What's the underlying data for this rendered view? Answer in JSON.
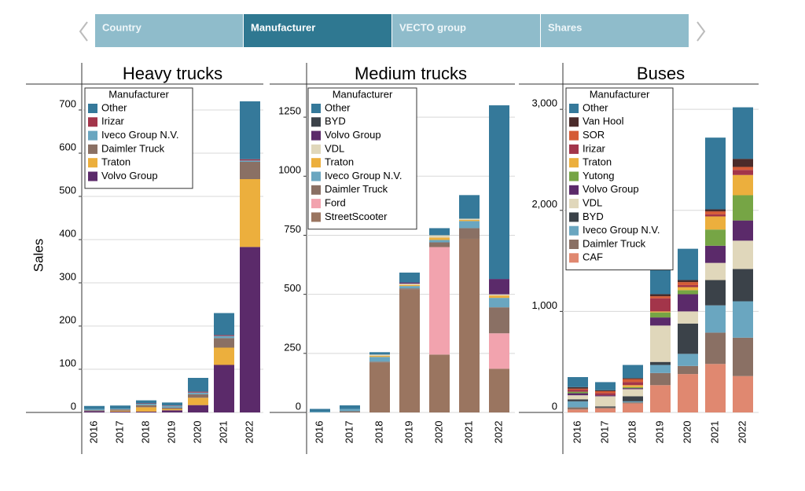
{
  "tabs": [
    "Country",
    "Manufacturer",
    "VECTO group",
    "Shares"
  ],
  "chart_data": [
    {
      "type": "bar",
      "stacked": true,
      "title": "Heavy trucks",
      "y_label": "Sales",
      "legend_title": "Manufacturer",
      "grid": true,
      "categories": [
        "2016",
        "2017",
        "2018",
        "2019",
        "2020",
        "2021",
        "2022"
      ],
      "ylim": [
        0,
        760
      ],
      "yticks": [
        0,
        100,
        200,
        300,
        400,
        500,
        600,
        700
      ],
      "series": [
        {
          "name": "Volvo Group",
          "color": "#5b2a6a",
          "values": [
            3,
            2,
            2,
            5,
            17,
            110,
            383
          ]
        },
        {
          "name": "Traton",
          "color": "#ecaf3d",
          "values": [
            0,
            2,
            10,
            3,
            17,
            40,
            157
          ]
        },
        {
          "name": "Daimler Truck",
          "color": "#8a7064",
          "values": [
            2,
            3,
            5,
            3,
            8,
            22,
            40
          ]
        },
        {
          "name": "Iveco Group N.V.",
          "color": "#6aa6c0",
          "values": [
            3,
            2,
            3,
            4,
            4,
            5,
            3
          ]
        },
        {
          "name": "Irizar",
          "color": "#a3354a",
          "values": [
            0,
            0,
            1,
            1,
            2,
            2,
            3
          ]
        },
        {
          "name": "Other",
          "color": "#35799a",
          "values": [
            7,
            7,
            7,
            7,
            32,
            51,
            134
          ]
        }
      ]
    },
    {
      "type": "bar",
      "stacked": true,
      "title": "Medium trucks",
      "legend_title": "Manufacturer",
      "grid": true,
      "categories": [
        "2016",
        "2017",
        "2018",
        "2019",
        "2020",
        "2021",
        "2022"
      ],
      "ylim": [
        0,
        1390
      ],
      "yticks": [
        0,
        250,
        500,
        750,
        1000,
        1250
      ],
      "series": [
        {
          "name": "StreetScooter",
          "color": "#9a7560",
          "values": [
            0,
            0,
            210,
            520,
            245,
            735,
            185
          ]
        },
        {
          "name": "Ford",
          "color": "#f2a3ae",
          "values": [
            0,
            0,
            0,
            0,
            455,
            0,
            150
          ]
        },
        {
          "name": "Daimler Truck",
          "color": "#8a7064",
          "values": [
            0,
            5,
            5,
            5,
            20,
            45,
            110
          ]
        },
        {
          "name": "Iveco Group N.V.",
          "color": "#6aa6c0",
          "values": [
            3,
            10,
            20,
            10,
            10,
            30,
            40
          ]
        },
        {
          "name": "Traton",
          "color": "#ecaf3d",
          "values": [
            0,
            0,
            5,
            5,
            10,
            5,
            10
          ]
        },
        {
          "name": "VDL",
          "color": "#e0d7bb",
          "values": [
            0,
            0,
            5,
            5,
            10,
            5,
            5
          ]
        },
        {
          "name": "Volvo Group",
          "color": "#5b2a6a",
          "values": [
            0,
            0,
            0,
            5,
            0,
            0,
            65
          ]
        },
        {
          "name": "BYD",
          "color": "#3b4249",
          "values": [
            0,
            0,
            0,
            0,
            0,
            0,
            0
          ]
        },
        {
          "name": "Other",
          "color": "#35799a",
          "values": [
            12,
            15,
            10,
            42,
            30,
            100,
            735
          ]
        }
      ]
    },
    {
      "type": "bar",
      "stacked": true,
      "title": "Buses",
      "legend_title": "Manufacturer",
      "grid": true,
      "categories": [
        "2016",
        "2017",
        "2018",
        "2019",
        "2020",
        "2021",
        "2022"
      ],
      "ylim": [
        0,
        3250
      ],
      "yticks": [
        0,
        {
          "value": 1000,
          "label": "1,000"
        },
        {
          "value": 2000,
          "label": "2,000"
        },
        {
          "value": 3000,
          "label": "3,000"
        }
      ],
      "series": [
        {
          "name": "CAF",
          "color": "#e08870",
          "values": [
            30,
            40,
            90,
            270,
            380,
            480,
            360
          ]
        },
        {
          "name": "Daimler Truck",
          "color": "#8a7064",
          "values": [
            20,
            10,
            10,
            120,
            80,
            310,
            380
          ]
        },
        {
          "name": "Iveco Group N.V.",
          "color": "#6aa6c0",
          "values": [
            60,
            0,
            10,
            80,
            120,
            270,
            360
          ]
        },
        {
          "name": "BYD",
          "color": "#3b4249",
          "values": [
            20,
            10,
            50,
            30,
            300,
            250,
            320
          ]
        },
        {
          "name": "VDL",
          "color": "#e0d7bb",
          "values": [
            40,
            100,
            70,
            360,
            120,
            170,
            280
          ]
        },
        {
          "name": "Volvo Group",
          "color": "#5b2a6a",
          "values": [
            20,
            10,
            10,
            80,
            170,
            170,
            200
          ]
        },
        {
          "name": "Yutong",
          "color": "#76a545",
          "values": [
            15,
            0,
            10,
            50,
            40,
            160,
            250
          ]
        },
        {
          "name": "Traton",
          "color": "#ecaf3d",
          "values": [
            0,
            0,
            20,
            10,
            30,
            130,
            200
          ]
        },
        {
          "name": "Irizar",
          "color": "#a3354a",
          "values": [
            20,
            20,
            30,
            130,
            20,
            20,
            50
          ]
        },
        {
          "name": "SOR",
          "color": "#d55b36",
          "values": [
            10,
            20,
            30,
            20,
            30,
            30,
            30
          ]
        },
        {
          "name": "Van Hool",
          "color": "#4b2b2a",
          "values": [
            15,
            10,
            10,
            20,
            20,
            20,
            80
          ]
        },
        {
          "name": "Other",
          "color": "#35799a",
          "values": [
            100,
            80,
            130,
            250,
            310,
            710,
            510
          ]
        }
      ]
    }
  ]
}
